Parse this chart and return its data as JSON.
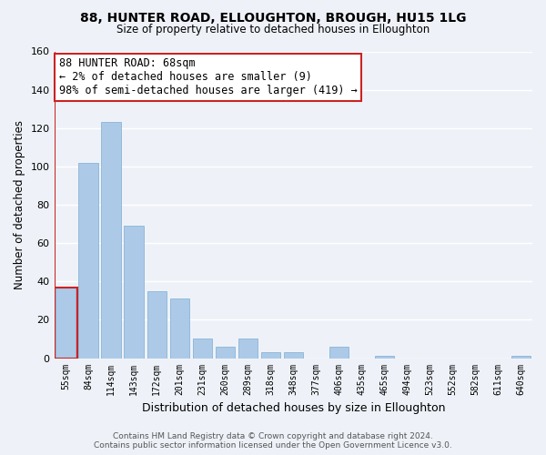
{
  "title1": "88, HUNTER ROAD, ELLOUGHTON, BROUGH, HU15 1LG",
  "title2": "Size of property relative to detached houses in Elloughton",
  "xlabel": "Distribution of detached houses by size in Elloughton",
  "ylabel": "Number of detached properties",
  "bar_labels": [
    "55sqm",
    "84sqm",
    "114sqm",
    "143sqm",
    "172sqm",
    "201sqm",
    "231sqm",
    "260sqm",
    "289sqm",
    "318sqm",
    "348sqm",
    "377sqm",
    "406sqm",
    "435sqm",
    "465sqm",
    "494sqm",
    "523sqm",
    "552sqm",
    "582sqm",
    "611sqm",
    "640sqm"
  ],
  "bar_values": [
    37,
    102,
    123,
    69,
    35,
    31,
    10,
    6,
    10,
    3,
    3,
    0,
    6,
    0,
    1,
    0,
    0,
    0,
    0,
    0,
    1
  ],
  "bar_color": "#adc9e8",
  "highlight_border_color": "#cc2222",
  "ylim": [
    0,
    160
  ],
  "yticks": [
    0,
    20,
    40,
    60,
    80,
    100,
    120,
    140,
    160
  ],
  "annotation_title": "88 HUNTER ROAD: 68sqm",
  "annotation_line1": "← 2% of detached houses are smaller (9)",
  "annotation_line2": "98% of semi-detached houses are larger (419) →",
  "annotation_box_color": "#ffffff",
  "annotation_border_color": "#cc2222",
  "footer1": "Contains HM Land Registry data © Crown copyright and database right 2024.",
  "footer2": "Contains public sector information licensed under the Open Government Licence v3.0.",
  "bg_color": "#eef2f8",
  "grid_color": "#d8dde8"
}
